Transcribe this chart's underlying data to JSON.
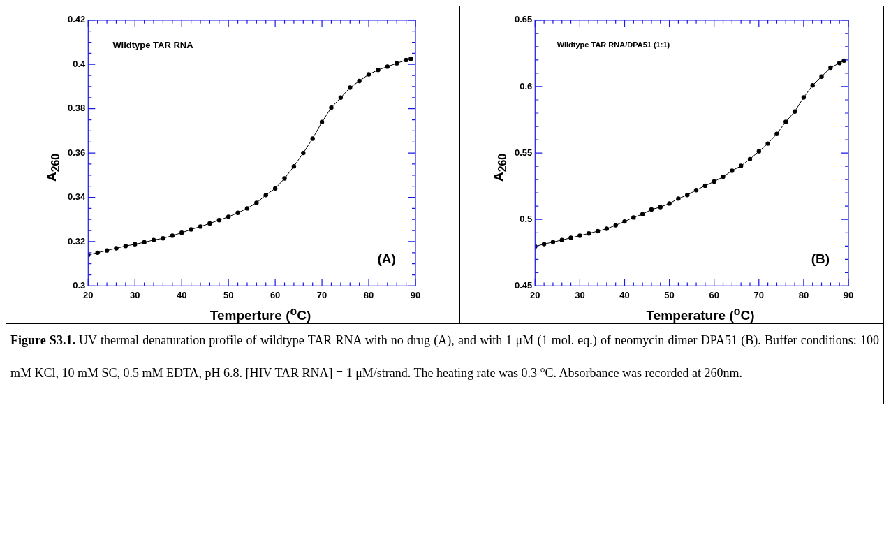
{
  "chart_data": [
    {
      "type": "line",
      "marker": "circle",
      "line_style": "solid",
      "legend": false,
      "grid": false,
      "xlabel": "Temperture ($^{o}$C)",
      "ylabel": "A$_{260}$",
      "annotations": [
        "Wildtype TAR RNA",
        "(A)",
        "Figure S3.1.",
        "UV thermal denaturation profile of wildtype TAR RNA with no drug (A), and with 1 μM (1 mol. eq.) of neomycin dimer DPA51 (B). Buffer conditions: 100 mM KCl, 10 mM SC, 0.5 mM EDTA, pH 6.8.  [HIV TAR RNA] = 1 μM/strand. The heating rate was 0.3 °C. Absorbance was recorded at 260nm."
      ],
      "xlim": [
        20,
        90
      ],
      "ylim": [
        0.3,
        0.42
      ],
      "xticks": [
        20,
        {
          "value": 22,
          "label": null
        },
        {
          "value": 24,
          "label": null
        },
        {
          "value": 26,
          "label": null
        },
        {
          "value": 28,
          "label": null
        },
        30,
        {
          "value": 32,
          "label": null
        },
        {
          "value": 34,
          "label": null
        },
        {
          "value": 36,
          "label": null
        },
        {
          "value": 38,
          "label": null
        },
        40,
        {
          "value": 42,
          "label": null
        },
        {
          "value": 44,
          "label": null
        },
        {
          "value": 46,
          "label": null
        },
        {
          "value": 48,
          "label": null
        },
        50,
        {
          "value": 52,
          "label": null
        },
        {
          "value": 54,
          "label": null
        },
        {
          "value": 56,
          "label": null
        },
        {
          "value": 58,
          "label": null
        },
        60,
        {
          "value": 62,
          "label": null
        },
        {
          "value": 64,
          "label": null
        },
        {
          "value": 66,
          "label": null
        },
        {
          "value": 68,
          "label": null
        },
        70,
        {
          "value": 72,
          "label": null
        },
        {
          "value": 74,
          "label": null
        },
        {
          "value": 76,
          "label": null
        },
        {
          "value": 78,
          "label": null
        },
        80,
        {
          "value": 82,
          "label": null
        },
        {
          "value": 84,
          "label": null
        },
        {
          "value": 86,
          "label": null
        },
        {
          "value": 88,
          "label": null
        },
        90
      ],
      "yticks": [
        0.3,
        {
          "value": 0.305,
          "label": null
        },
        {
          "value": 0.31,
          "label": null
        },
        {
          "value": 0.315,
          "label": null
        },
        0.32,
        {
          "value": 0.325,
          "label": null
        },
        {
          "value": 0.33,
          "label": null
        },
        {
          "value": 0.335,
          "label": null
        },
        0.34,
        {
          "value": 0.345,
          "label": null
        },
        {
          "value": 0.35,
          "label": null
        },
        {
          "value": 0.355,
          "label": null
        },
        0.36,
        {
          "value": 0.365,
          "label": null
        },
        {
          "value": 0.37,
          "label": null
        },
        {
          "value": 0.375,
          "label": null
        },
        0.38,
        {
          "value": 0.385,
          "label": null
        },
        {
          "value": 0.39,
          "label": null
        },
        {
          "value": 0.395,
          "label": null
        },
        0.4,
        {
          "value": 0.405,
          "label": null
        },
        {
          "value": 0.41,
          "label": null
        },
        {
          "value": 0.415,
          "label": null
        },
        0.42
      ],
      "series": [
        {
          "color": "#000000",
          "x": [
            20,
            22,
            24,
            26,
            28,
            30,
            32,
            34,
            36,
            38,
            40,
            42,
            44,
            46,
            48,
            50,
            52,
            54,
            56,
            58,
            60,
            62,
            64,
            66,
            68,
            70,
            72,
            74,
            76,
            78,
            80,
            82,
            84,
            86,
            88,
            89
          ],
          "values": [
            0.314,
            0.315,
            0.316,
            0.317,
            0.318,
            0.3188,
            0.3197,
            0.3207,
            0.3215,
            0.3227,
            0.324,
            0.3255,
            0.3268,
            0.3282,
            0.3297,
            0.3312,
            0.333,
            0.335,
            0.3375,
            0.341,
            0.344,
            0.3485,
            0.354,
            0.36,
            0.3665,
            0.374,
            0.3805,
            0.385,
            0.3895,
            0.3925,
            0.3955,
            0.3975,
            0.399,
            0.4005,
            0.402,
            0.4025
          ]
        }
      ]
    },
    {
      "type": "line",
      "marker": "circle",
      "line_style": "solid",
      "legend": false,
      "grid": false,
      "xlabel": "Temperature ($^{o}$C)",
      "ylabel": "A$_{260}$",
      "annotations": [
        "Wildtype TAR RNA/DPA51 (1:1)",
        "(B)"
      ],
      "xlim": [
        20,
        90
      ],
      "ylim": [
        0.45,
        0.65
      ],
      "xticks": [
        20,
        {
          "value": 22,
          "label": null
        },
        {
          "value": 24,
          "label": null
        },
        {
          "value": 26,
          "label": null
        },
        {
          "value": 28,
          "label": null
        },
        30,
        {
          "value": 32,
          "label": null
        },
        {
          "value": 34,
          "label": null
        },
        {
          "value": 36,
          "label": null
        },
        {
          "value": 38,
          "label": null
        },
        40,
        {
          "value": 42,
          "label": null
        },
        {
          "value": 44,
          "label": null
        },
        {
          "value": 46,
          "label": null
        },
        {
          "value": 48,
          "label": null
        },
        50,
        {
          "value": 52,
          "label": null
        },
        {
          "value": 54,
          "label": null
        },
        {
          "value": 56,
          "label": null
        },
        {
          "value": 58,
          "label": null
        },
        60,
        {
          "value": 62,
          "label": null
        },
        {
          "value": 64,
          "label": null
        },
        {
          "value": 66,
          "label": null
        },
        {
          "value": 68,
          "label": null
        },
        70,
        {
          "value": 72,
          "label": null
        },
        {
          "value": 74,
          "label": null
        },
        {
          "value": 76,
          "label": null
        },
        {
          "value": 78,
          "label": null
        },
        80,
        {
          "value": 82,
          "label": null
        },
        {
          "value": 84,
          "label": null
        },
        {
          "value": 86,
          "label": null
        },
        {
          "value": 88,
          "label": null
        },
        90
      ],
      "yticks": [
        0.45,
        {
          "value": 0.46,
          "label": null
        },
        {
          "value": 0.47,
          "label": null
        },
        {
          "value": 0.48,
          "label": null
        },
        {
          "value": 0.49,
          "label": null
        },
        0.5,
        {
          "value": 0.51,
          "label": null
        },
        {
          "value": 0.52,
          "label": null
        },
        {
          "value": 0.53,
          "label": null
        },
        {
          "value": 0.54,
          "label": null
        },
        0.55,
        {
          "value": 0.56,
          "label": null
        },
        {
          "value": 0.57,
          "label": null
        },
        {
          "value": 0.58,
          "label": null
        },
        {
          "value": 0.59,
          "label": null
        },
        0.6,
        {
          "value": 0.61,
          "label": null
        },
        {
          "value": 0.62,
          "label": null
        },
        {
          "value": 0.63,
          "label": null
        },
        {
          "value": 0.64,
          "label": null
        },
        0.65
      ],
      "series": [
        {
          "color": "#000000",
          "x": [
            20,
            22,
            24,
            26,
            28,
            30,
            32,
            34,
            36,
            38,
            40,
            42,
            44,
            46,
            48,
            50,
            52,
            54,
            56,
            58,
            60,
            62,
            64,
            66,
            68,
            70,
            72,
            74,
            76,
            78,
            80,
            82,
            84,
            86,
            88,
            89
          ],
          "values": [
            0.4797,
            0.4815,
            0.483,
            0.4845,
            0.4862,
            0.4878,
            0.4895,
            0.4912,
            0.493,
            0.4956,
            0.4985,
            0.5015,
            0.504,
            0.5075,
            0.5093,
            0.512,
            0.5157,
            0.5184,
            0.5221,
            0.5254,
            0.5285,
            0.5321,
            0.5367,
            0.5403,
            0.5454,
            0.5513,
            0.5571,
            0.5644,
            0.5735,
            0.5812,
            0.5918,
            0.6009,
            0.6075,
            0.6142,
            0.6177,
            0.6195
          ]
        }
      ]
    }
  ]
}
